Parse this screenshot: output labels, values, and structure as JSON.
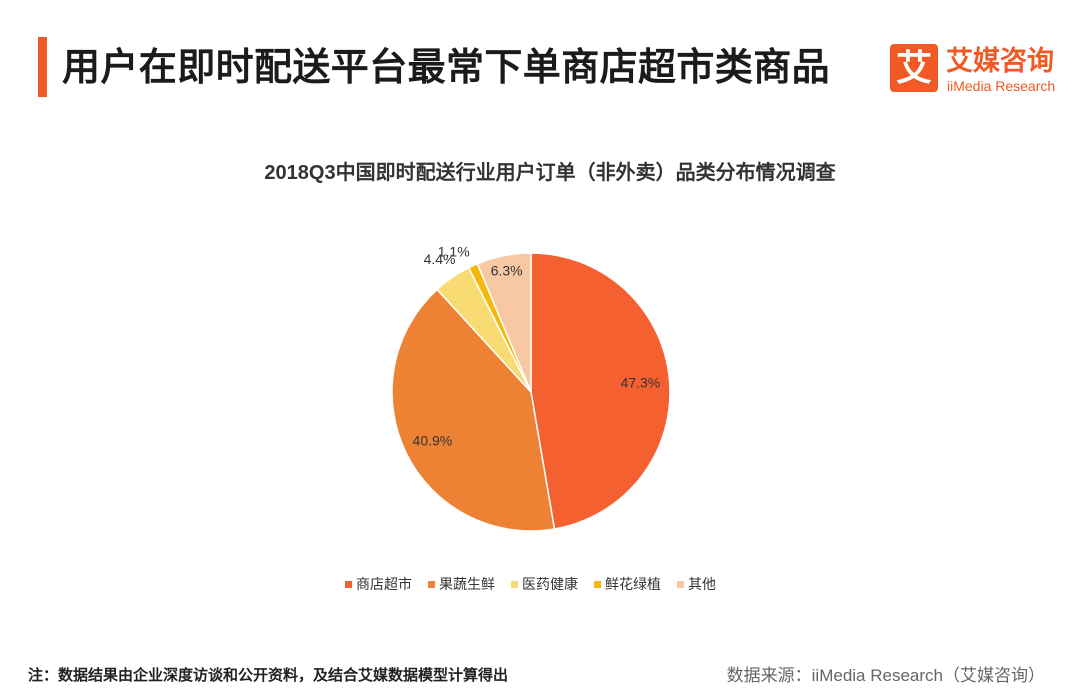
{
  "header": {
    "title": "用户在即时配送平台最常下单商店超市类商品"
  },
  "logo": {
    "mark": "艾",
    "name": "艾媒咨询",
    "name_en": "iiMedia Research"
  },
  "colors": {
    "accent": "#F15A24"
  },
  "chart_data": {
    "type": "pie",
    "title": "2018Q3中国即时配送行业用户订单（非外卖）品类分布情况调查",
    "categories": [
      "商店超市",
      "果蔬生鲜",
      "医药健康",
      "鲜花绿植",
      "其他"
    ],
    "values": [
      47.3,
      40.9,
      4.4,
      1.1,
      6.3
    ],
    "data_labels": [
      "47.3%",
      "40.9%",
      "4.4%",
      "1.1%",
      "6.3%"
    ],
    "colors": [
      "#F4602F",
      "#EE8234",
      "#F9DB73",
      "#F4B90B",
      "#F8C8A3"
    ],
    "legend_position": "bottom"
  },
  "footer": {
    "note": "注：数据结果由企业深度访谈和公开资料，及结合艾媒数据模型计算得出",
    "source": "数据来源：iiMedia Research（艾媒咨询）"
  }
}
